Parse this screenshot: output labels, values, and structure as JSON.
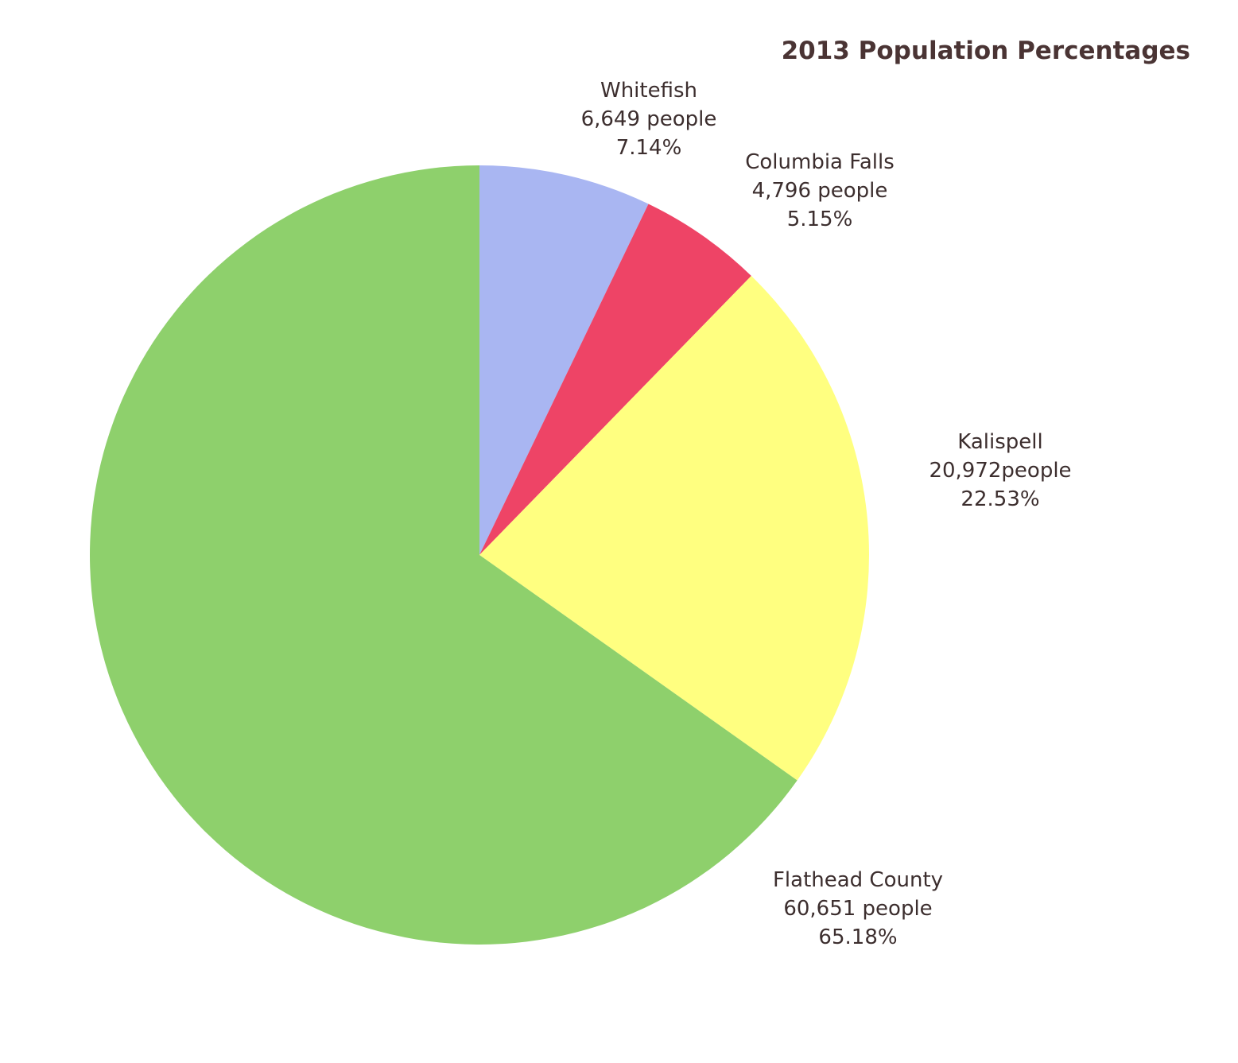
{
  "chart_data": {
    "type": "pie",
    "title": "2013 Population Percentages",
    "start": "top",
    "direction": "clockwise",
    "slices": [
      {
        "name": "Whitefish",
        "count_label": "6,649 people",
        "percent_label": "7.14%",
        "value": 7.14,
        "color": "#a9b6f2"
      },
      {
        "name": "Columbia Falls",
        "count_label": "4,796 people",
        "percent_label": "5.15%",
        "value": 5.15,
        "color": "#ee4466"
      },
      {
        "name": "Kalispell",
        "count_label": "20,972people",
        "percent_label": "22.53%",
        "value": 22.53,
        "color": "#ffff80"
      },
      {
        "name": "Flathead County",
        "count_label": "60,651 people",
        "percent_label": "65.18%",
        "value": 65.18,
        "color": "#8ed06c"
      }
    ]
  }
}
